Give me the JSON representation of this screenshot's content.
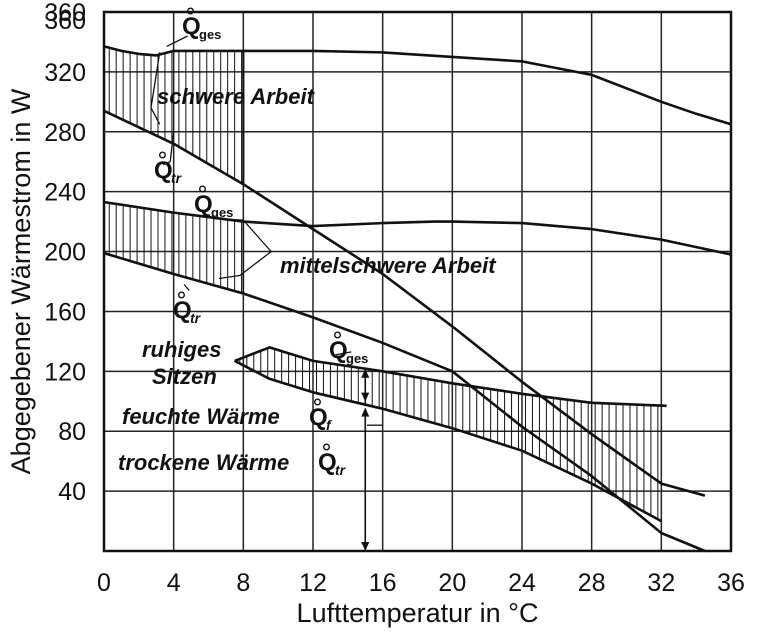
{
  "chart_data": {
    "type": "line",
    "xlabel": "Lufttemperatur in °C",
    "ylabel": "Abgegebener Wärmestrom in W",
    "xlim": [
      0,
      36
    ],
    "ylim": [
      0,
      360
    ],
    "xticks": [
      0,
      4,
      8,
      12,
      16,
      20,
      24,
      28,
      32,
      36
    ],
    "yticks": [
      40,
      80,
      120,
      160,
      200,
      240,
      280,
      320,
      360
    ],
    "grid": true,
    "series": [
      {
        "x": [
          0,
          1,
          2,
          3,
          4,
          5,
          6,
          8,
          12,
          16,
          20,
          24,
          28,
          32,
          34,
          36
        ],
        "y": [
          337,
          334,
          332,
          331,
          334,
          334,
          334,
          334,
          334,
          333,
          330,
          327,
          318,
          300,
          292,
          285
        ]
      },
      {
        "x": [
          0,
          4,
          8,
          12,
          16,
          20,
          24,
          28,
          32,
          34.5
        ],
        "y": [
          294,
          272,
          245,
          215,
          185,
          150,
          113,
          78,
          45,
          37
        ]
      },
      {
        "x": [
          0,
          4,
          8,
          12,
          16,
          19,
          20,
          24,
          28,
          32,
          36
        ],
        "y": [
          233,
          226,
          220,
          217,
          219,
          220,
          220,
          219,
          215,
          208,
          198
        ]
      },
      {
        "x": [
          0,
          4,
          8,
          12,
          16,
          20,
          24,
          28,
          32,
          34.5
        ],
        "y": [
          199,
          185,
          172,
          156,
          139,
          120,
          83,
          50,
          12,
          0
        ]
      },
      {
        "x": [
          7.5,
          9.5,
          12,
          16,
          20,
          24,
          28,
          32.3
        ],
        "y": [
          127,
          136,
          127,
          120,
          112,
          105,
          99,
          97
        ]
      },
      {
        "x": [
          7.5,
          9.5,
          12,
          16,
          20,
          24,
          28,
          32
        ],
        "y": [
          127,
          115,
          106,
          95,
          82,
          67,
          45,
          20
        ]
      }
    ],
    "annotations": {
      "schwer": "schwere Arbeit",
      "mittel": "mittelschwere Arbeit",
      "ruhig1": "ruhiges",
      "ruhig2": "Sitzen",
      "feucht": "feuchte Wärme",
      "trocken": "trockene Wärme",
      "q": "Q",
      "ges": "ges",
      "tr": "tr",
      "f": "f"
    }
  }
}
